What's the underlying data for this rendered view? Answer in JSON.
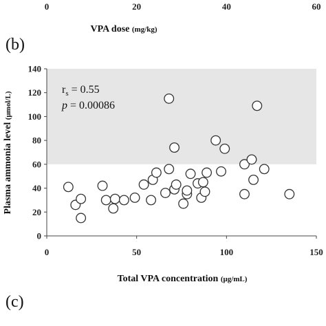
{
  "top_axis": {
    "ticks": [
      "0",
      "20",
      "40",
      "60"
    ],
    "tick_values": [
      0,
      20,
      40,
      60
    ],
    "range": [
      0,
      60
    ],
    "label_main": "VPA dose ",
    "label_unit": "(mg/kg)"
  },
  "panels": {
    "b": "(b)",
    "c": "(c)"
  },
  "stats": {
    "rs_main": "r",
    "rs_sub": "s",
    "rs_value": " = 0.55",
    "p_italic": "p",
    "p_value": " = 0.00086"
  },
  "colors": {
    "shade": "#e6e6e6",
    "axis": "#444444",
    "marker_edge": "#333333"
  },
  "chart_data": {
    "type": "scatter",
    "title": "",
    "xlabel": "Total VPA concentration (μg/mL)",
    "ylabel": "Plasma ammonia level (μmol/L)",
    "xlabel_main": "Total VPA concentration ",
    "xlabel_unit": "(μg/mL)",
    "ylabel_main": "Plasma ammonia level ",
    "ylabel_unit": "(μmol/L)",
    "xlim": [
      0,
      150
    ],
    "ylim": [
      0,
      140
    ],
    "xticks": [
      "0",
      "50",
      "100",
      "150"
    ],
    "xtick_values": [
      0,
      50,
      100,
      150
    ],
    "yticks": [
      "0",
      "20",
      "40",
      "60",
      "80",
      "100",
      "120",
      "140"
    ],
    "ytick_values": [
      0,
      20,
      40,
      60,
      80,
      100,
      120,
      140
    ],
    "shaded_band": [
      60,
      140
    ],
    "grid": false,
    "legend": "none",
    "x": [
      12,
      16,
      19,
      19,
      31,
      33,
      37,
      38,
      43,
      49,
      54,
      58,
      59,
      61,
      66,
      68,
      68,
      71,
      72,
      71,
      76,
      78,
      78,
      80,
      84,
      86,
      87,
      88,
      89,
      94,
      97,
      99,
      110,
      110,
      114,
      115,
      117,
      121,
      135
    ],
    "y": [
      41,
      26,
      15,
      31,
      42,
      30,
      23,
      31,
      30,
      32,
      43,
      30,
      47,
      53,
      36,
      56,
      115,
      39,
      43,
      74,
      27,
      35,
      38,
      52,
      44,
      32,
      45,
      37,
      53,
      80,
      54,
      73,
      35,
      60,
      64,
      47,
      109,
      56,
      35
    ]
  }
}
